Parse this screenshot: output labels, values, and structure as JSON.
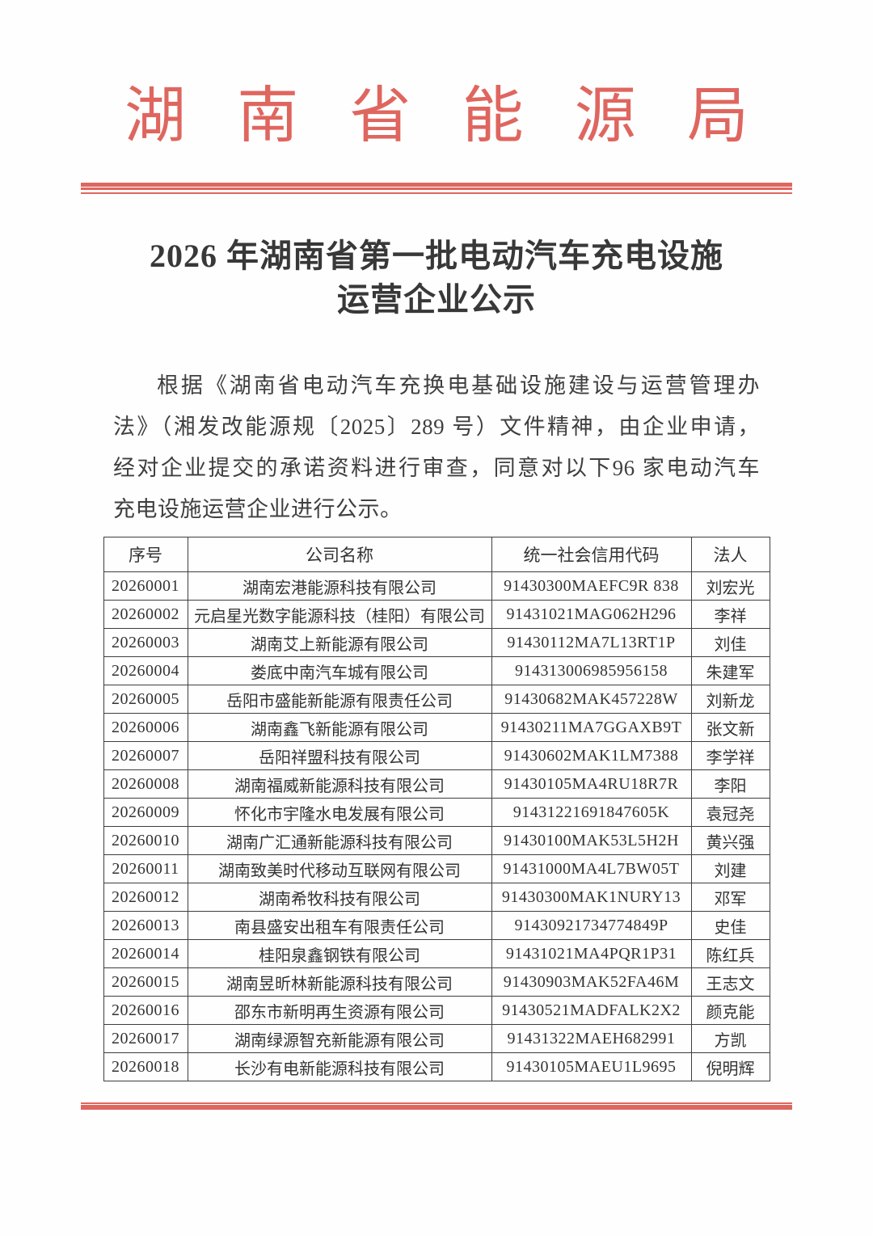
{
  "header": {
    "agency": "湖南省能源局"
  },
  "title": {
    "line1": "2026 年湖南省第一批电动汽车充电设施",
    "line2": "运营企业公示"
  },
  "body": {
    "lines": [
      "根据《湖南省电动汽车充换电基础设施建设与运营管理办",
      "法》（湘发改能源规〔2025〕289 号）文件精神，由企业申请，",
      "经对企业提交的承诺资料进行审查，同意对以下96 家电动汽车",
      "充电设施运营企业进行公示。"
    ]
  },
  "table": {
    "headers": [
      "序号",
      "公司名称",
      "统一社会信用代码",
      "法人"
    ],
    "rows": [
      [
        "20260001",
        "湖南宏港能源科技有限公司",
        "91430300MAEFC9R 838",
        "刘宏光"
      ],
      [
        "20260002",
        "元启星光数字能源科技（桂阳）有限公司",
        "91431021MAG062H296",
        "李祥"
      ],
      [
        "20260003",
        "湖南艾上新能源有限公司",
        "91430112MA7L13RT1P",
        "刘佳"
      ],
      [
        "20260004",
        "娄底中南汽车城有限公司",
        "914313006985956158",
        "朱建军"
      ],
      [
        "20260005",
        "岳阳市盛能新能源有限责任公司",
        "91430682MAK457228W",
        "刘新龙"
      ],
      [
        "20260006",
        "湖南鑫飞新能源有限公司",
        "91430211MA7GGAXB9T",
        "张文新"
      ],
      [
        "20260007",
        "岳阳祥盟科技有限公司",
        "91430602MAK1LM7388",
        "李学祥"
      ],
      [
        "20260008",
        "湖南福威新能源科技有限公司",
        "91430105MA4RU18R7R",
        "李阳"
      ],
      [
        "20260009",
        "怀化市宇隆水电发展有限公司",
        "91431221691847605K",
        "袁冠尧"
      ],
      [
        "20260010",
        "湖南广汇通新能源科技有限公司",
        "91430100MAK53L5H2H",
        "黄兴强"
      ],
      [
        "20260011",
        "湖南致美时代移动互联网有限公司",
        "91431000MA4L7BW05T",
        "刘建"
      ],
      [
        "20260012",
        "湖南希牧科技有限公司",
        "91430300MAK1NURY13",
        "邓军"
      ],
      [
        "20260013",
        "南县盛安出租车有限责任公司",
        "91430921734774849P",
        "史佳"
      ],
      [
        "20260014",
        "桂阳泉鑫钢铁有限公司",
        "91431021MA4PQR1P31",
        "陈红兵"
      ],
      [
        "20260015",
        "湖南昱昕林新能源科技有限公司",
        "91430903MAK52FA46M",
        "王志文"
      ],
      [
        "20260016",
        "邵东市新明再生资源有限公司",
        "91430521MADFALK2X2",
        "颜克能"
      ],
      [
        "20260017",
        "湖南绿源智充新能源有限公司",
        "91431322MAEH682991",
        "方凯"
      ],
      [
        "20260018",
        "长沙有电新能源科技有限公司",
        "91430105MAEU1L9695",
        "倪明辉"
      ]
    ]
  },
  "colors": {
    "accent_red": "#df665f"
  }
}
